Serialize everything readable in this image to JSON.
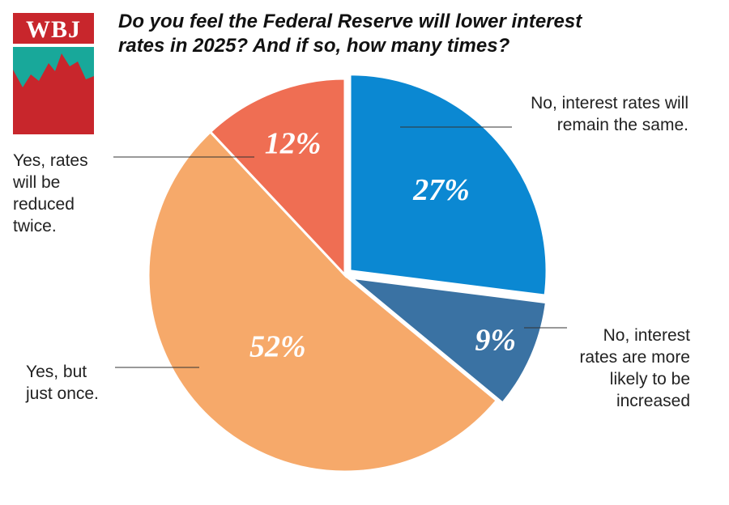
{
  "logo": {
    "text": "WBJ",
    "colors": {
      "red": "#c8262c",
      "teal": "#18a89a",
      "chart_red": "#c8262c"
    }
  },
  "title_lines": [
    "Do you feel the Federal Reserve will lower interest",
    "rates in 2025? And if so, how many times?"
  ],
  "chart_data": {
    "type": "pie",
    "title": "Do you feel the Federal Reserve will lower interest rates in 2025? And if so, how many times?",
    "start_angle_deg": 0,
    "direction": "clockwise",
    "slices": [
      {
        "label": "No, interest rates will remain the same.",
        "label_lines": [
          "No, interest rates will",
          "remain the same."
        ],
        "value": 27,
        "display": "27%",
        "color": "#0b88d2",
        "exploded": true
      },
      {
        "label": "No, interest rates are more likely to be increased",
        "label_lines": [
          "No, interest",
          "rates are more",
          "likely to be",
          "increased"
        ],
        "value": 9,
        "display": "9%",
        "color": "#3a72a3",
        "exploded": true
      },
      {
        "label": "Yes, but just once.",
        "label_lines": [
          "Yes, but",
          "just once."
        ],
        "value": 52,
        "display": "52%",
        "color": "#f6a96a",
        "exploded": false
      },
      {
        "label": "Yes, rates will be reduced twice.",
        "label_lines": [
          "Yes, rates",
          "will be",
          "reduced",
          "twice."
        ],
        "value": 12,
        "display": "12%",
        "color": "#ef6e53",
        "exploded": false
      }
    ]
  }
}
